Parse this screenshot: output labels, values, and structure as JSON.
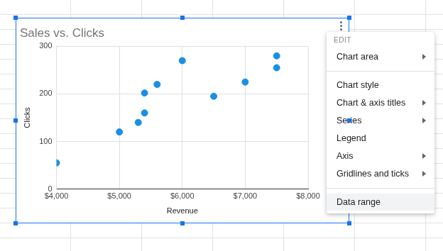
{
  "chart_data": {
    "type": "scatter",
    "title": "Sales vs. Clicks",
    "x_label": "Revenue",
    "y_label": "Clicks",
    "x": [
      4000,
      5000,
      5300,
      5400,
      5400,
      5600,
      6000,
      6500,
      7000,
      7500,
      7500
    ],
    "values": [
      55,
      120,
      140,
      160,
      202,
      220,
      270,
      195,
      225,
      280,
      255
    ],
    "color": "#1a8fe3",
    "xlim": [
      4000,
      8000
    ],
    "xticks": [
      {
        "value": 4000,
        "label": "$4,000"
      },
      {
        "value": 5000,
        "label": "$5,000"
      },
      {
        "value": 6000,
        "label": "$6,000"
      },
      {
        "value": 7000,
        "label": "$7,000"
      },
      {
        "value": 8000,
        "label": "$8,000"
      }
    ],
    "ylim": [
      0,
      300
    ],
    "yticks": [
      0,
      100,
      200,
      300
    ],
    "grid": true
  },
  "menu": {
    "header": "EDIT",
    "groups": [
      [
        {
          "label": "Chart area",
          "submenu": true
        }
      ],
      [
        {
          "label": "Chart style",
          "submenu": false
        },
        {
          "label": "Chart & axis titles",
          "submenu": true
        },
        {
          "label": "Series",
          "submenu": true
        },
        {
          "label": "Legend",
          "submenu": false
        },
        {
          "label": "Axis",
          "submenu": true
        },
        {
          "label": "Gridlines and ticks",
          "submenu": true
        }
      ],
      [
        {
          "label": "Data range",
          "submenu": false,
          "highlighted": true
        }
      ]
    ]
  }
}
